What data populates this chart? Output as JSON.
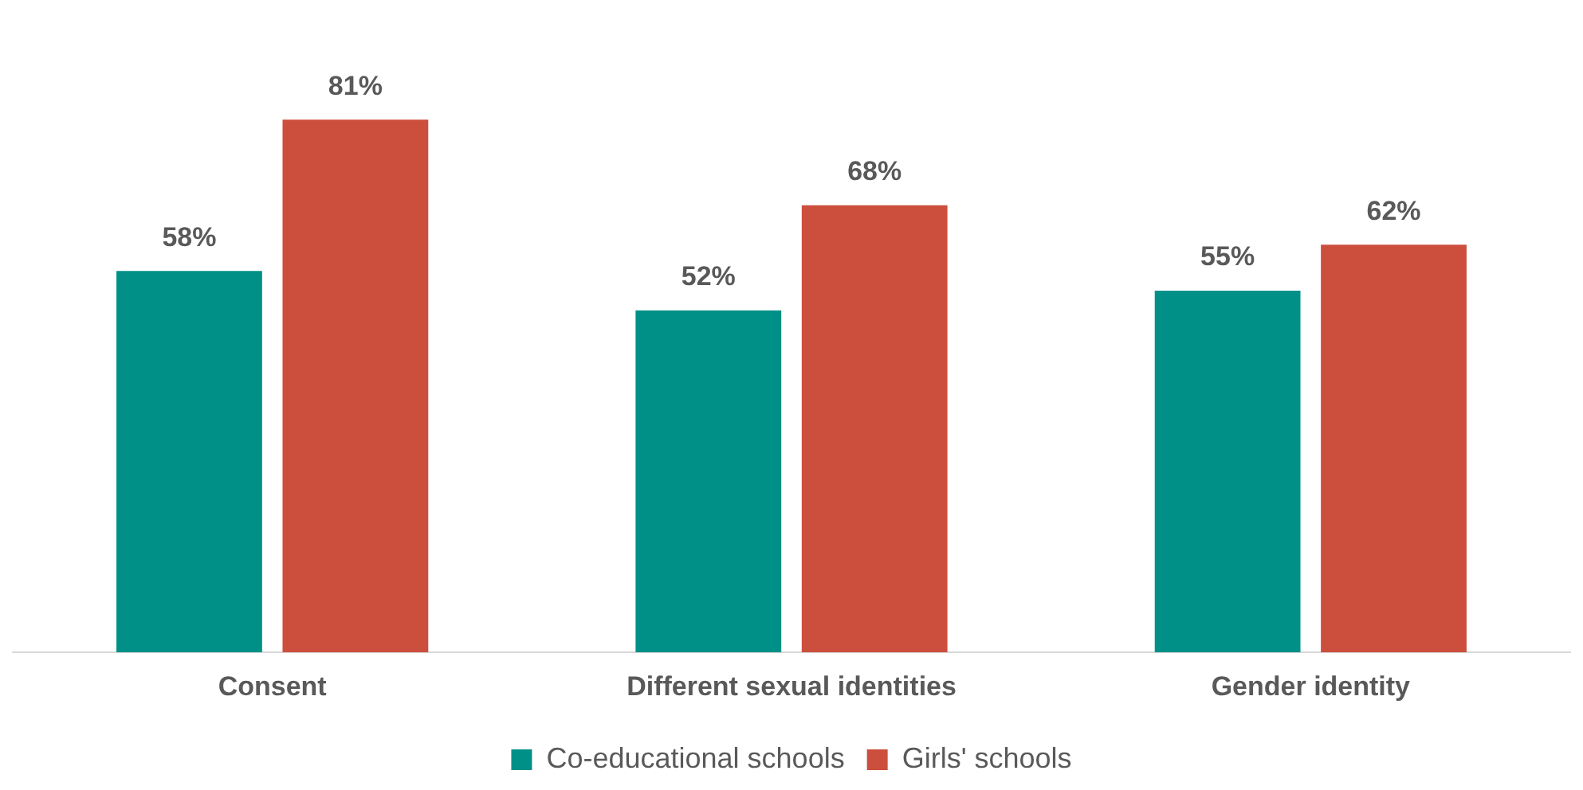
{
  "chart_data": {
    "type": "bar",
    "categories": [
      "Consent",
      "Different sexual identities",
      "Gender identity"
    ],
    "series": [
      {
        "name": "Co-educational schools",
        "color": "#009088",
        "values": [
          58,
          52,
          55
        ],
        "value_labels": [
          "58%",
          "52%",
          "55%"
        ]
      },
      {
        "name": "Girls' schools",
        "color": "#cc4e3c",
        "values": [
          81,
          68,
          62
        ],
        "value_labels": [
          "81%",
          "68%",
          "62%"
        ]
      }
    ],
    "grid": false,
    "legend": "bottom"
  }
}
